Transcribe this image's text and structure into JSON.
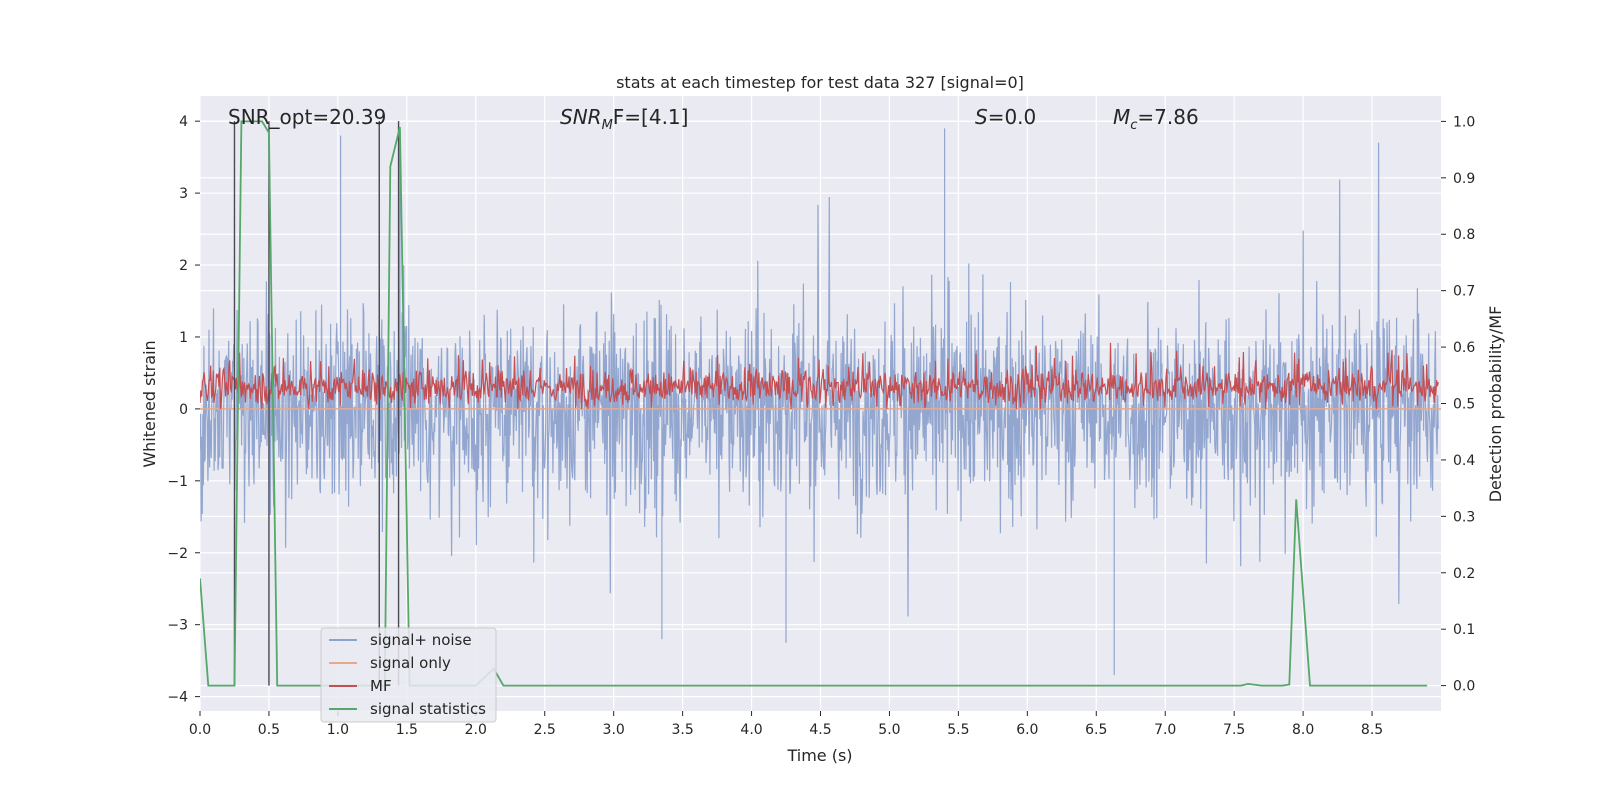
{
  "chart_data": {
    "type": "line",
    "title": "stats at each timestep for test data 327 [signal=0]",
    "xlabel": "Time (s)",
    "ylabel_left": "Whitened strain",
    "ylabel_right": "Detection probability/MF",
    "xlim": [
      0.0,
      9.0
    ],
    "ylim_left": [
      -4.2,
      4.35
    ],
    "ylim_right": [
      -0.045,
      1.045
    ],
    "x_ticks": [
      "0.0",
      "0.5",
      "1.0",
      "1.5",
      "2.0",
      "2.5",
      "3.0",
      "3.5",
      "4.0",
      "4.5",
      "5.0",
      "5.5",
      "6.0",
      "6.5",
      "7.0",
      "7.5",
      "8.0",
      "8.5"
    ],
    "y_ticks_left": [
      "−4",
      "−3",
      "−2",
      "−1",
      "0",
      "1",
      "2",
      "3",
      "4"
    ],
    "y_ticks_right": [
      "0.0",
      "0.1",
      "0.2",
      "0.3",
      "0.4",
      "0.5",
      "0.6",
      "0.7",
      "0.8",
      "0.9",
      "1.0"
    ],
    "grid": true,
    "legend_position": "lower-left",
    "annotations": {
      "snr_opt": "SNR_opt=20.39",
      "snr_mf_a": "SNR",
      "snr_mf_sub": "M",
      "snr_mf_b": "F=[4.1]",
      "s_a": "S",
      "s_b": "=0.0",
      "mc_a": "M",
      "mc_sub": "c",
      "mc_b": "=7.86"
    },
    "series": [
      {
        "name": "signal+ noise",
        "color": "#8da2cc",
        "axis": "left",
        "description_range": [
          -3.7,
          4.0
        ],
        "values": "dense noise band, mostly between -1.5 and 1.8, peaks near 3.8 at t=1.0, 1.3, 1.45, 5.4 and -3.7 at t=6.6"
      },
      {
        "name": "signal only",
        "color": "#e8a98a",
        "axis": "left",
        "x": [
          0.0,
          9.0
        ],
        "y": [
          0.0,
          0.0
        ]
      },
      {
        "name": "MF",
        "color": "#c44e52",
        "axis": "left",
        "typical_range": [
          0.0,
          0.8
        ]
      },
      {
        "name": "signal statistics",
        "color": "#55a868",
        "axis": "right",
        "x": [
          0.0,
          0.06,
          0.25,
          0.3,
          0.45,
          0.5,
          0.56,
          1.3,
          1.34,
          1.38,
          1.45,
          1.52,
          2.0,
          2.13,
          2.2,
          7.5,
          7.55,
          7.6,
          7.7,
          7.85,
          7.9,
          7.95,
          8.05,
          8.1,
          8.9
        ],
        "y": [
          0.19,
          0.0,
          0.0,
          1.0,
          1.0,
          0.98,
          0.0,
          0.0,
          0.0,
          0.92,
          0.99,
          0.0,
          0.0,
          0.03,
          0.0,
          0.0,
          0.0,
          0.003,
          0.0,
          0.0,
          0.002,
          0.33,
          0.0,
          0.0,
          0.0
        ]
      }
    ],
    "vertical_markers": [
      0.25,
      0.5,
      1.3,
      1.44
    ]
  }
}
